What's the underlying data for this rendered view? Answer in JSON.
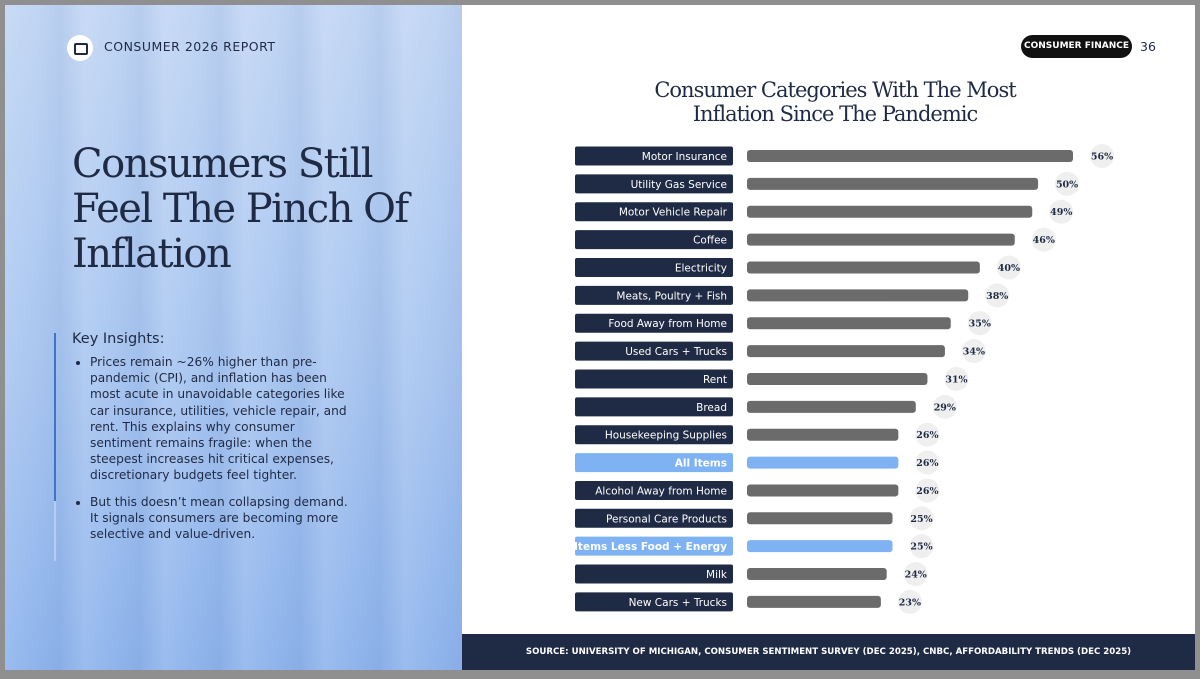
{
  "header": {
    "report": "CONSUMER 2026 REPORT",
    "tag": "CONSUMER FINANCE",
    "page": 36
  },
  "headline": "Consumers Still Feel The Pinch Of Inflation",
  "insights": {
    "title": "Key Insights:",
    "bullets": [
      "Prices remain ~26% higher than pre-pandemic (CPI), and inflation has been most acute in unavoidable categories like car insurance, utilities, vehicle repair, and rent. This explains why consumer sentiment remains fragile: when the steepest increases hit critical expenses, discretionary budgets feel tighter.",
      "But this doesn’t mean collapsing demand. It signals consumers are becoming more selective and value-driven."
    ]
  },
  "chart_data": {
    "type": "bar",
    "orientation": "horizontal",
    "title": "Consumer Categories With The Most Inflation Since The Pandemic",
    "categories": [
      "Motor Insurance",
      "Utility Gas Service",
      "Motor Vehicle Repair",
      "Coffee",
      "Electricity",
      "Meats, Poultry + Fish",
      "Food Away from Home",
      "Used Cars + Trucks",
      "Rent",
      "Bread",
      "Housekeeping Supplies",
      "All Items",
      "Alcohol Away from Home",
      "Personal Care Products",
      "All Items Less Food + Energy",
      "Milk",
      "New Cars + Trucks"
    ],
    "values": [
      56,
      50,
      49,
      46,
      40,
      38,
      35,
      34,
      31,
      29,
      26,
      26,
      26,
      25,
      25,
      24,
      23
    ],
    "value_labels": [
      "56%",
      "50%",
      "49%",
      "46%",
      "40%",
      "38%",
      "35%",
      "34%",
      "31%",
      "29%",
      "26%",
      "26%",
      "26%",
      "25%",
      "25%",
      "24%",
      "23%"
    ],
    "colors": [
      "#6b6b6b",
      "#6b6b6b",
      "#6b6b6b",
      "#6b6b6b",
      "#6b6b6b",
      "#6b6b6b",
      "#6b6b6b",
      "#6b6b6b",
      "#6b6b6b",
      "#6b6b6b",
      "#6b6b6b",
      "#7fb2f2",
      "#6b6b6b",
      "#6b6b6b",
      "#7fb2f2",
      "#6b6b6b",
      "#6b6b6b"
    ],
    "label_box_colors": [
      "#1f2a44",
      "#1f2a44",
      "#1f2a44",
      "#1f2a44",
      "#1f2a44",
      "#1f2a44",
      "#1f2a44",
      "#1f2a44",
      "#1f2a44",
      "#1f2a44",
      "#1f2a44",
      "#7fb2f2",
      "#1f2a44",
      "#1f2a44",
      "#7fb2f2",
      "#1f2a44",
      "#1f2a44"
    ]
  },
  "source": "SOURCE: UNIVERSITY OF MICHIGAN, CONSUMER SENTIMENT SURVEY (DEC 2025), CNBC, AFFORDABILITY TRENDS (DEC 2025)"
}
